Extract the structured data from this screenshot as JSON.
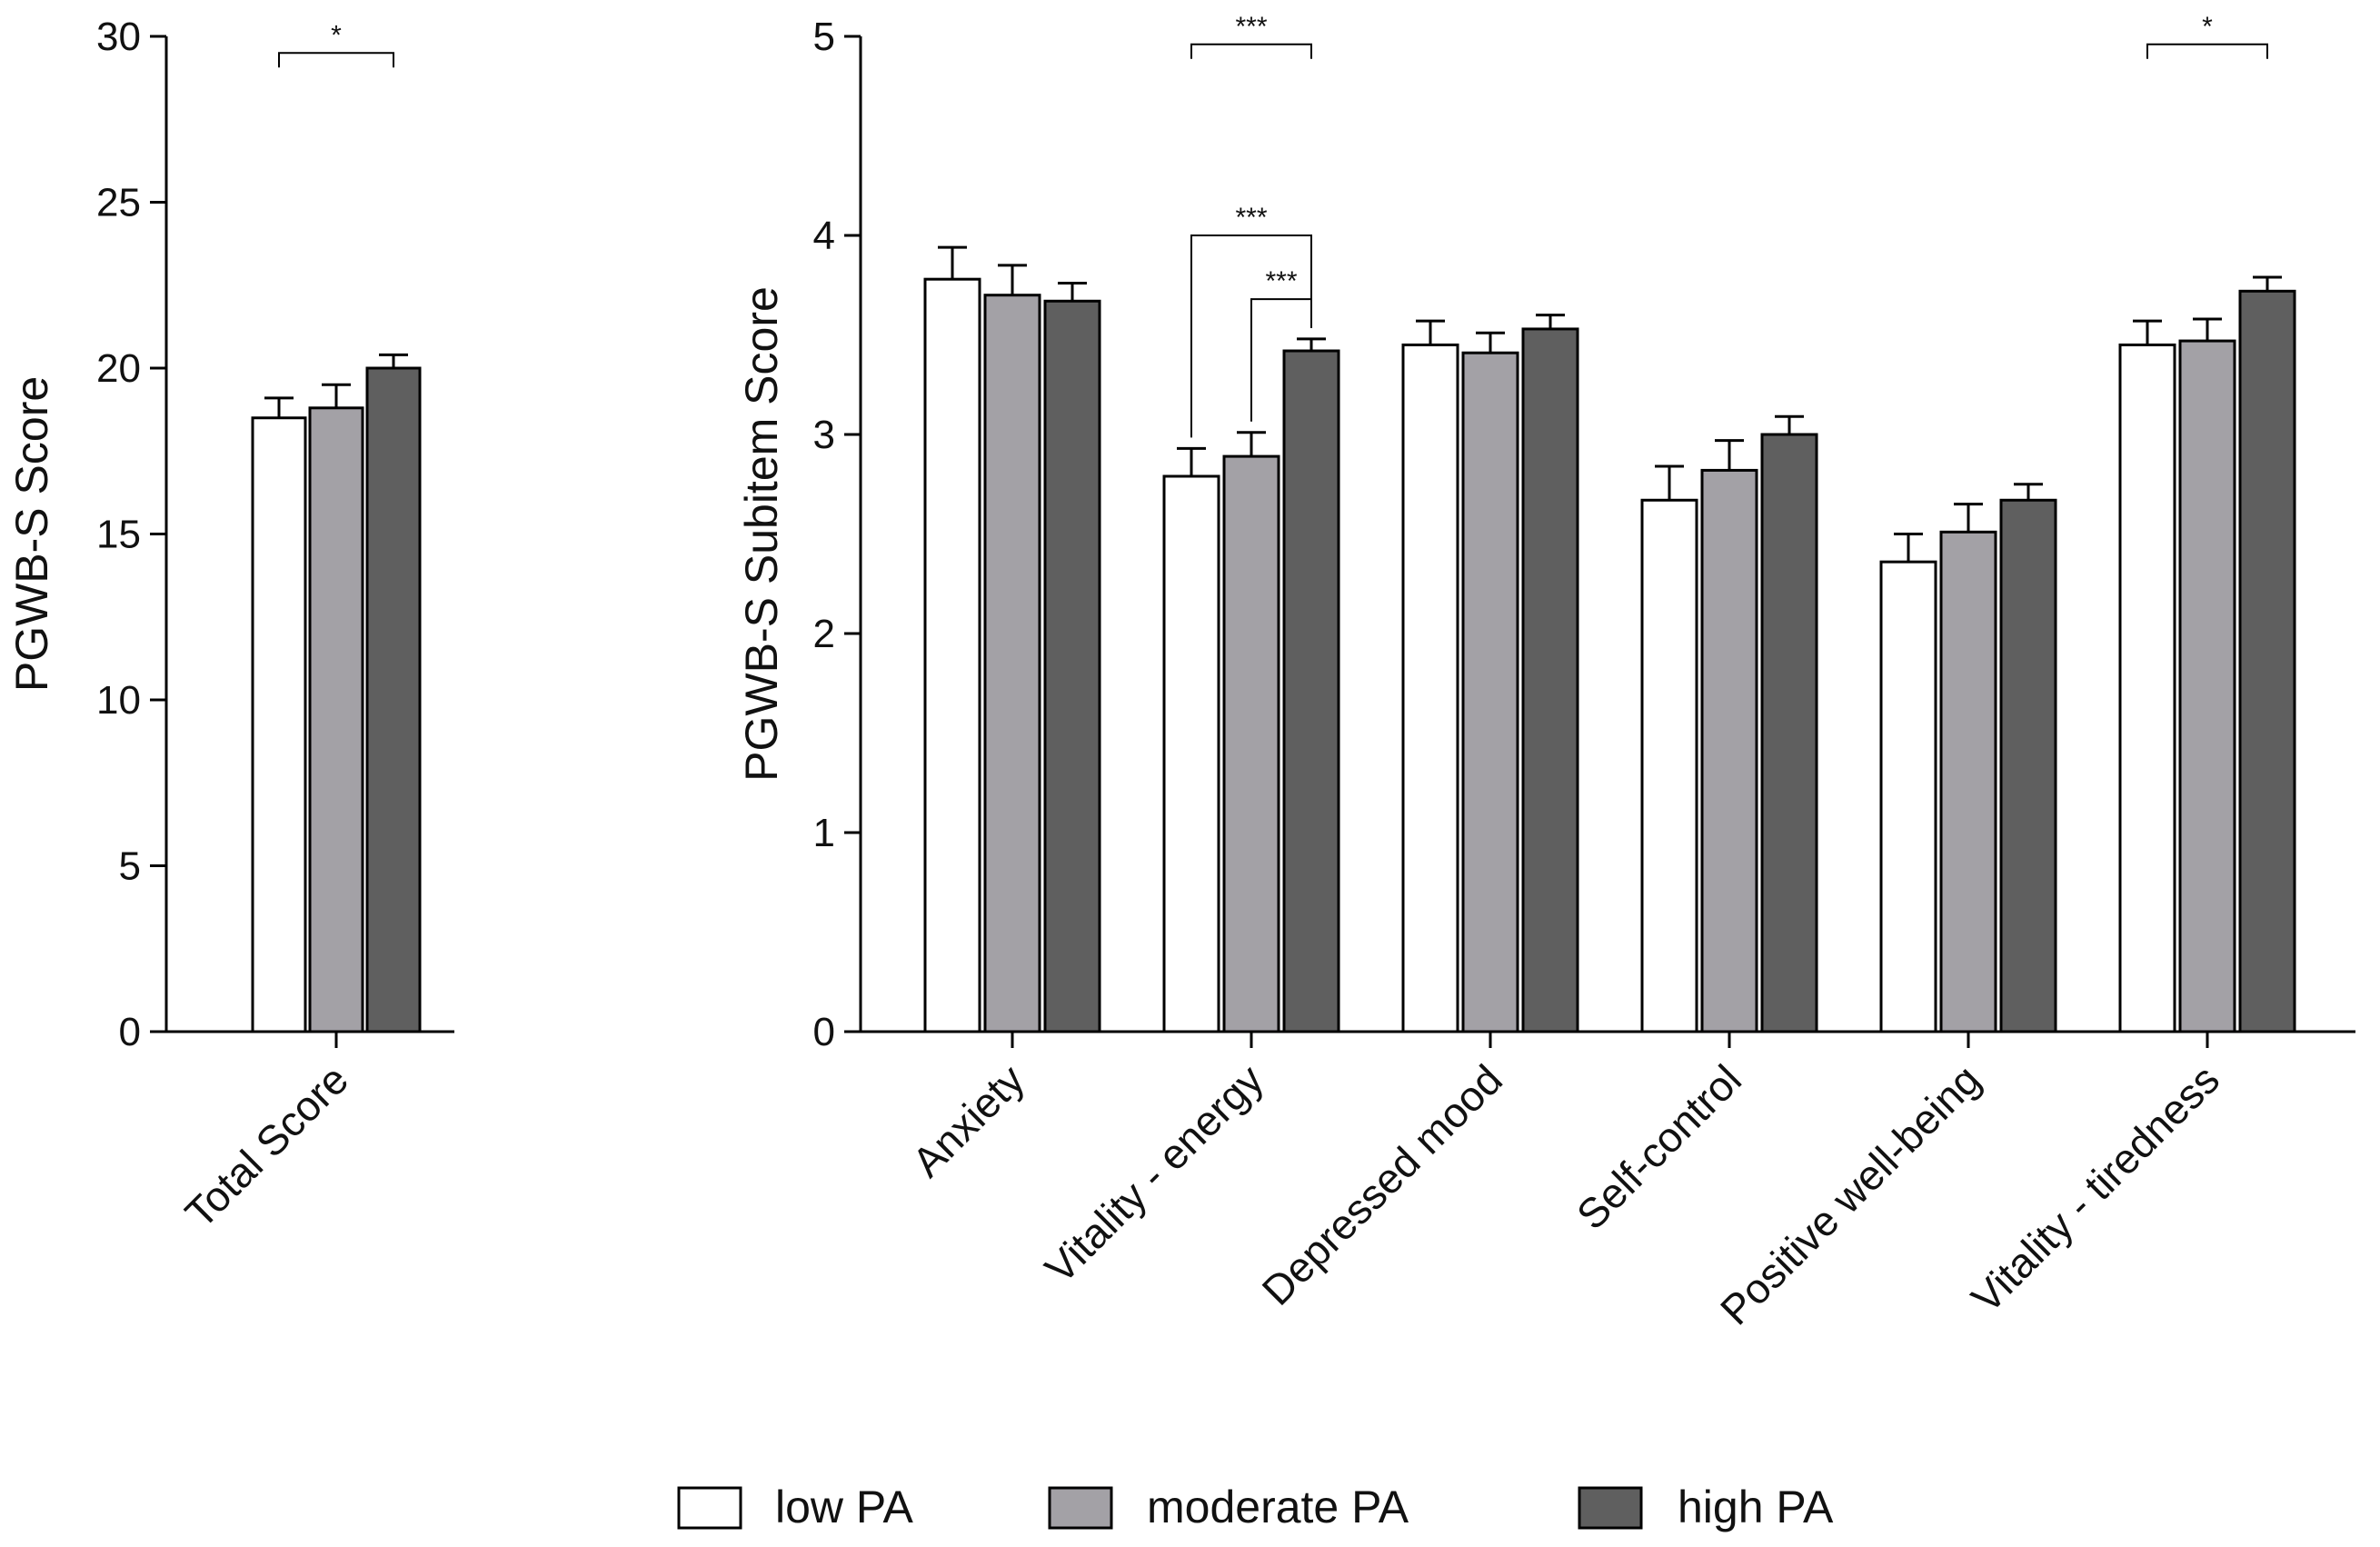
{
  "colors": {
    "low": "#ffffff",
    "moderate": "#a3a1a6",
    "high": "#5f5f5f",
    "axis": "#000000"
  },
  "legend": [
    {
      "key": "low",
      "label": "low PA"
    },
    {
      "key": "moderate",
      "label": "moderate PA"
    },
    {
      "key": "high",
      "label": "high PA"
    }
  ],
  "chart_data": [
    {
      "type": "bar",
      "ylabel": "PGWB-S Score",
      "xlabel": "",
      "ylim": [
        0,
        30
      ],
      "yticks": [
        0,
        5,
        10,
        15,
        20,
        25,
        30
      ],
      "categories": [
        "Total Score"
      ],
      "series": [
        {
          "name": "low PA",
          "key": "low",
          "values": [
            18.5
          ],
          "errors": [
            0.6
          ]
        },
        {
          "name": "moderate PA",
          "key": "moderate",
          "values": [
            18.8
          ],
          "errors": [
            0.7
          ]
        },
        {
          "name": "high PA",
          "key": "high",
          "values": [
            20.0
          ],
          "errors": [
            0.4
          ]
        }
      ],
      "significance": [
        {
          "category": 0,
          "from": "low",
          "to": "high",
          "label": "*",
          "y": 29.5
        }
      ]
    },
    {
      "type": "bar",
      "ylabel": "PGWB-S Subitem  Score",
      "xlabel": "",
      "ylim": [
        0,
        5
      ],
      "yticks": [
        0,
        1,
        2,
        3,
        4,
        5
      ],
      "categories": [
        "Anxiety",
        "Vitality - energy",
        "Depressed mood",
        "Self-control",
        "Positive well-being",
        "Vitality - tiredness"
      ],
      "series": [
        {
          "name": "low PA",
          "key": "low",
          "values": [
            3.78,
            2.79,
            3.45,
            2.67,
            2.36,
            3.45
          ],
          "errors": [
            0.16,
            0.14,
            0.12,
            0.17,
            0.14,
            0.12
          ]
        },
        {
          "name": "moderate PA",
          "key": "moderate",
          "values": [
            3.7,
            2.89,
            3.41,
            2.82,
            2.51,
            3.47
          ],
          "errors": [
            0.15,
            0.12,
            0.1,
            0.15,
            0.14,
            0.11
          ]
        },
        {
          "name": "high PA",
          "key": "high",
          "values": [
            3.67,
            3.42,
            3.53,
            3.0,
            2.67,
            3.72
          ],
          "errors": [
            0.09,
            0.06,
            0.07,
            0.09,
            0.08,
            0.07
          ]
        }
      ],
      "significance": [
        {
          "category": 1,
          "from": "low",
          "to": "high",
          "label": "***",
          "y": 4.96
        },
        {
          "category": 1,
          "from": "low",
          "to": "high",
          "label": "***",
          "y": 4.0,
          "legs_to_bars": true
        },
        {
          "category": 1,
          "from": "moderate",
          "to": "high",
          "label": "***",
          "y": 3.68,
          "legs_to_bars": true
        },
        {
          "category": 5,
          "from": "low",
          "to": "high",
          "label": "*",
          "y": 4.96
        }
      ]
    }
  ]
}
